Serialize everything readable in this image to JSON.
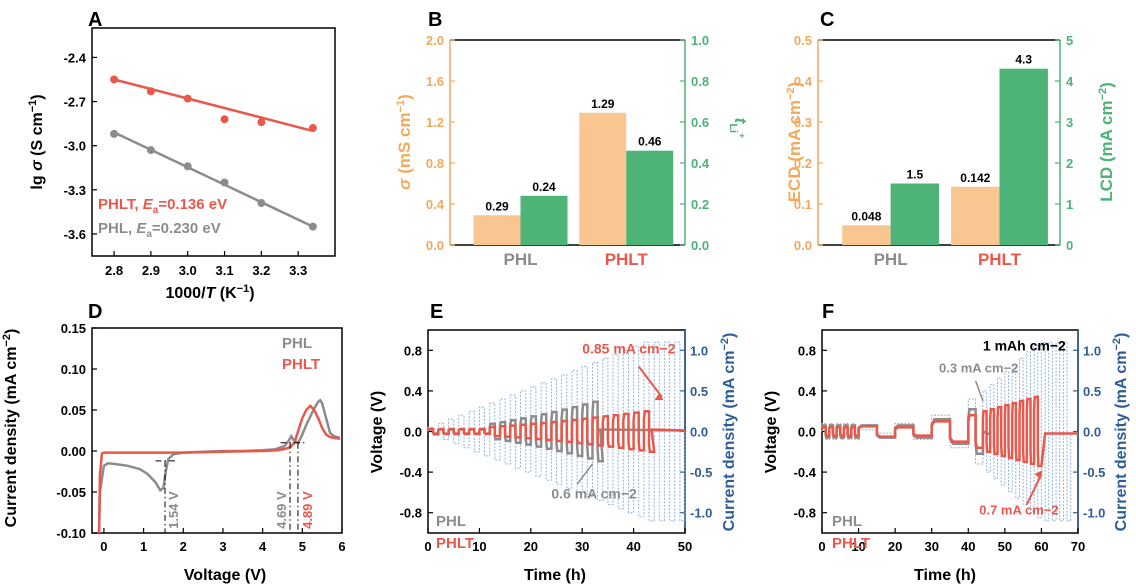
{
  "colors": {
    "red": "#E8584B",
    "gray": "#8C8C8C",
    "peach": "#F9C591",
    "green": "#4DB376",
    "orange": "#F2A95B",
    "blue": "#2E5C97",
    "lightblue": "#8FB2DE"
  },
  "panel_labels": [
    "A",
    "B",
    "C",
    "D",
    "E",
    "F"
  ],
  "chart_data": [
    {
      "id": "A",
      "type": "scatter",
      "xlabel_prefix": "1000/",
      "xlabel_var": "T",
      "xlabel_unit": " (K",
      "xlabel_sup": "−1",
      "xlabel_end": ")",
      "ylabel_prefix": "lg ",
      "ylabel_var": "σ",
      "ylabel_unit": " (S cm",
      "ylabel_sup": "−1",
      "ylabel_end": ")",
      "xlim": [
        2.74,
        3.4
      ],
      "ylim": [
        -3.75,
        -2.2
      ],
      "xticks": [
        "2.8",
        "2.9",
        "3.0",
        "3.1",
        "3.2",
        "3.3"
      ],
      "yticks": [
        "-2.4",
        "-2.7",
        "-3.0",
        "-3.3",
        "-3.6"
      ],
      "series": [
        {
          "name": "PHLT",
          "legend_label": "PHLT, ",
          "legend_var": "E",
          "legend_sub": "a",
          "legend_value": "=0.136 eV",
          "x": [
            2.8,
            2.9,
            3.0,
            3.1,
            3.2,
            3.34
          ],
          "y": [
            -2.55,
            -2.63,
            -2.68,
            -2.82,
            -2.84,
            -2.88
          ],
          "fit": [
            [
              2.8,
              -2.55
            ],
            [
              3.34,
              -2.9
            ]
          ]
        },
        {
          "name": "PHL",
          "legend_label": "PHL, ",
          "legend_var": "E",
          "legend_sub": "a",
          "legend_value": "=0.230 eV",
          "x": [
            2.8,
            2.9,
            3.0,
            3.1,
            3.2,
            3.34
          ],
          "y": [
            -2.92,
            -3.03,
            -3.14,
            -3.25,
            -3.39,
            -3.55
          ],
          "fit": [
            [
              2.8,
              -2.91
            ],
            [
              3.34,
              -3.55
            ]
          ]
        }
      ]
    },
    {
      "id": "B",
      "type": "bar",
      "categories": [
        "PHL",
        "PHLT"
      ],
      "ylabel_left_var": "σ",
      "ylabel_left_unit": " (mS cm",
      "ylabel_left_sup": "−1",
      "ylabel_left_end": ")",
      "ylabel_right_main": "t",
      "ylabel_right_sub": "Li",
      "ylabel_right_sup": "+",
      "ylim_left": [
        0,
        2.0
      ],
      "ylim_right": [
        0,
        1.0
      ],
      "yticks_left": [
        "0.0",
        "0.4",
        "0.8",
        "1.2",
        "1.6",
        "2.0"
      ],
      "yticks_right": [
        "0.0",
        "0.2",
        "0.4",
        "0.6",
        "0.8",
        "1.0"
      ],
      "series": [
        {
          "name": "σ",
          "axis": "left",
          "values": [
            0.29,
            1.29
          ],
          "labels": [
            "0.29",
            "1.29"
          ]
        },
        {
          "name": "t",
          "axis": "right",
          "values": [
            0.24,
            0.46
          ],
          "labels": [
            "0.24",
            "0.46"
          ]
        }
      ]
    },
    {
      "id": "C",
      "type": "bar",
      "categories": [
        "PHL",
        "PHLT"
      ],
      "ylabel_left": "ECD (mA cm",
      "ylabel_left_sup": "−2",
      "ylabel_left_end": ")",
      "ylabel_right": "LCD (mA cm",
      "ylabel_right_sup": "−2",
      "ylabel_right_end": ")",
      "ylim_left": [
        0,
        0.5
      ],
      "ylim_right": [
        0,
        5
      ],
      "yticks_left": [
        "0.0",
        "0.1",
        "0.2",
        "0.3",
        "0.4",
        "0.5"
      ],
      "yticks_right": [
        "0",
        "1",
        "2",
        "3",
        "4",
        "5"
      ],
      "series": [
        {
          "name": "ECD",
          "axis": "left",
          "values": [
            0.048,
            0.142
          ],
          "labels": [
            "0.048",
            "0.142"
          ]
        },
        {
          "name": "LCD",
          "axis": "right",
          "values": [
            1.5,
            4.3
          ],
          "labels": [
            "1.5",
            "4.3"
          ]
        }
      ]
    },
    {
      "id": "D",
      "type": "line",
      "xlabel": "Voltage (V)",
      "ylabel": "Current density (mA cm",
      "ylabel_sup": "−2",
      "ylabel_end": ")",
      "xlim": [
        -0.3,
        6
      ],
      "ylim": [
        -0.1,
        0.15
      ],
      "xticks": [
        "0",
        "1",
        "2",
        "3",
        "4",
        "5",
        "6"
      ],
      "yticks": [
        "0.15",
        "0.10",
        "0.05",
        "0.00",
        "-0.05",
        "-0.10"
      ],
      "legend": [
        "PHL",
        "PHLT"
      ],
      "annotations": [
        "1.54 V",
        "4.69 V",
        "4.89 V"
      ],
      "series": [
        {
          "name": "PHL",
          "x": [
            -0.12,
            -0.1,
            0.0,
            0.1,
            0.3,
            0.6,
            0.9,
            1.1,
            1.3,
            1.42,
            1.5,
            1.56,
            1.62,
            1.75,
            2.0,
            2.5,
            3.0,
            3.5,
            4.0,
            4.3,
            4.55,
            4.65,
            4.72,
            4.8,
            4.9,
            5.0,
            5.1,
            5.2,
            5.3,
            5.4,
            5.45,
            5.5,
            5.6,
            5.7,
            5.8,
            5.95
          ],
          "y": [
            -0.1,
            -0.05,
            -0.018,
            -0.015,
            -0.016,
            -0.018,
            -0.022,
            -0.028,
            -0.038,
            -0.048,
            -0.045,
            -0.025,
            -0.01,
            -0.004,
            -0.002,
            -0.001,
            0.0,
            0.0,
            0.001,
            0.002,
            0.006,
            0.012,
            0.018,
            0.012,
            0.01,
            0.02,
            0.032,
            0.042,
            0.052,
            0.06,
            0.062,
            0.058,
            0.04,
            0.022,
            0.018,
            0.016
          ]
        },
        {
          "name": "PHLT",
          "x": [
            -0.12,
            -0.1,
            -0.05,
            0.0,
            0.5,
            1.0,
            2.0,
            3.0,
            4.0,
            4.4,
            4.6,
            4.7,
            4.8,
            4.9,
            5.0,
            5.1,
            5.2,
            5.3,
            5.4,
            5.5,
            5.6,
            5.7,
            5.8,
            5.95
          ],
          "y": [
            -0.1,
            -0.03,
            -0.003,
            -0.002,
            -0.002,
            -0.002,
            -0.002,
            -0.001,
            0.0,
            0.001,
            0.003,
            0.005,
            0.01,
            0.025,
            0.04,
            0.05,
            0.055,
            0.05,
            0.04,
            0.028,
            0.02,
            0.017,
            0.016,
            0.015
          ]
        }
      ]
    },
    {
      "id": "E",
      "type": "line",
      "xlabel": "Time (h)",
      "ylabel": "Voltage (V)",
      "ylabel_right": "Current density (mA cm",
      "ylabel_right_sup": "−2",
      "ylabel_right_end": ")",
      "xlim": [
        0,
        50
      ],
      "ylim": [
        -1.0,
        1.0
      ],
      "ylim_right": [
        -1.25,
        1.25
      ],
      "xticks": [
        "0",
        "10",
        "20",
        "30",
        "40",
        "50"
      ],
      "yticks": [
        "0.8",
        "0.4",
        "0.0",
        "-0.4",
        "-0.8"
      ],
      "yticks_right": [
        "1.0",
        "0.5",
        "0.0",
        "-0.5",
        "-1.0"
      ],
      "legend": [
        "PHL",
        "PHLT"
      ],
      "annotations": [
        "0.85 mA cm−2",
        "0.6 mA cm−2"
      ],
      "protocol": {
        "step_h": 2,
        "first_current": 0.05,
        "current_increment": 0.05,
        "max_current": 1.1
      },
      "series": [
        {
          "name": "PHL",
          "v_start": [
            0,
            0.02
          ],
          "v_end": [
            32,
            0.28
          ],
          "short_at_h": 33.5
        },
        {
          "name": "PHLT",
          "v_start": [
            0,
            0.02
          ],
          "v_end": [
            42,
            0.2
          ],
          "short_at_h": 43.5
        }
      ]
    },
    {
      "id": "F",
      "type": "line",
      "xlabel": "Time (h)",
      "ylabel": "Voltage (V)",
      "ylabel_right": "Current density (mA cm",
      "ylabel_right_sup": "−2",
      "ylabel_right_end": ")",
      "xlim": [
        0,
        70
      ],
      "ylim": [
        -1.0,
        1.0
      ],
      "ylim_right": [
        -1.25,
        1.25
      ],
      "xticks": [
        "0",
        "10",
        "20",
        "30",
        "40",
        "50",
        "60",
        "70"
      ],
      "yticks": [
        "0.8",
        "0.4",
        "0.0",
        "-0.4",
        "-0.8"
      ],
      "yticks_right": [
        "1.0",
        "0.5",
        "0.0",
        "-0.5",
        "-1.0"
      ],
      "legend": [
        "PHL",
        "PHLT"
      ],
      "annotations": [
        "1 mAh cm−2",
        "0.3 mA cm−2",
        "0.7 mA cm−2"
      ],
      "series": [
        {
          "name": "PHL",
          "short_at_h": 44
        },
        {
          "name": "PHLT",
          "short_at_h": 61
        }
      ]
    }
  ]
}
